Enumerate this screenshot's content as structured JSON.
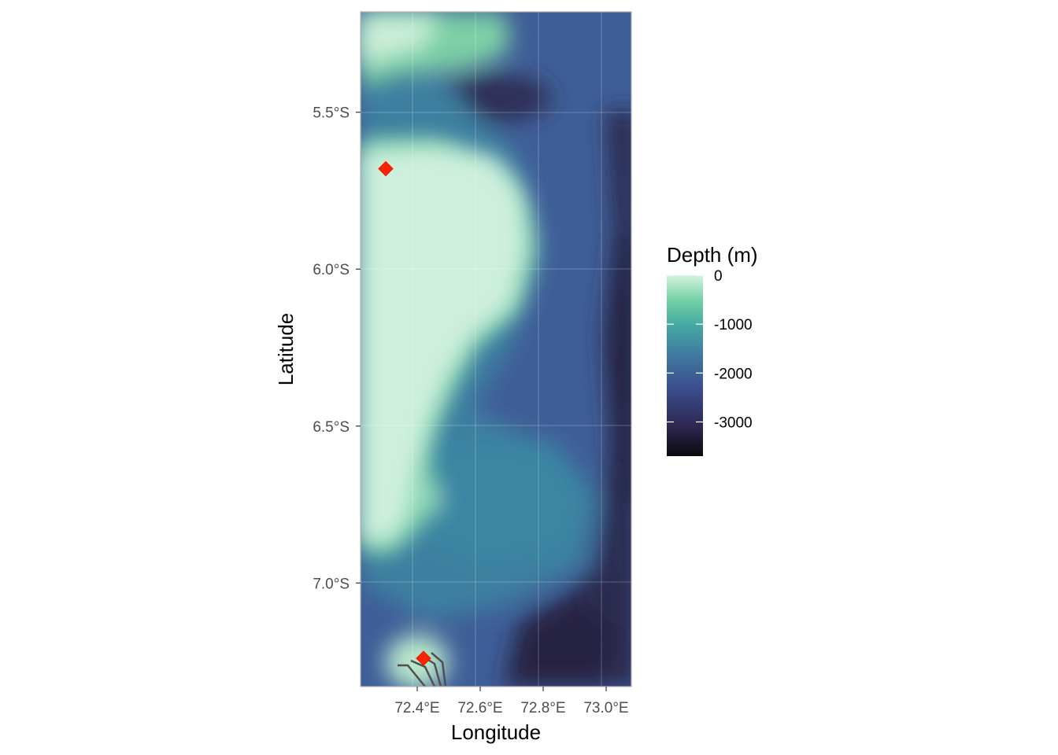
{
  "map": {
    "x_axis": {
      "title": "Longitude",
      "ticks": [
        {
          "value": 72.4,
          "label": "72.4°E"
        },
        {
          "value": 72.6,
          "label": "72.6°E"
        },
        {
          "value": 72.8,
          "label": "72.8°E"
        },
        {
          "value": 73.0,
          "label": "73.0°E"
        }
      ],
      "range": [
        72.22,
        73.08
      ]
    },
    "y_axis": {
      "title": "Latitude",
      "ticks": [
        {
          "value": -5.5,
          "label": "5.5°S"
        },
        {
          "value": -6.0,
          "label": "6.0°S"
        },
        {
          "value": -6.5,
          "label": "6.5°S"
        },
        {
          "value": -7.0,
          "label": "7.0°S"
        }
      ],
      "range": [
        -7.33,
        -5.18
      ]
    },
    "legend": {
      "title": "Depth (m)",
      "position": "right",
      "ticks": [
        {
          "value": 0,
          "label": "0"
        },
        {
          "value": -1000,
          "label": "-1000"
        },
        {
          "value": -2000,
          "label": "-2000"
        },
        {
          "value": -3000,
          "label": "-3000"
        }
      ],
      "range": [
        -3700,
        0
      ],
      "colors": [
        "#0a090e",
        "#2d2650",
        "#3b4f8f",
        "#3f7ba0",
        "#44a7a3",
        "#72d0a5",
        "#d6f2e0"
      ]
    },
    "points": [
      {
        "lon": 72.3,
        "lat": -5.68,
        "color": "#ff2200"
      },
      {
        "lon": 72.42,
        "lat": -7.24,
        "color": "#ff2200"
      }
    ],
    "panel_border_color": "#b3b3b3",
    "grid": true
  }
}
